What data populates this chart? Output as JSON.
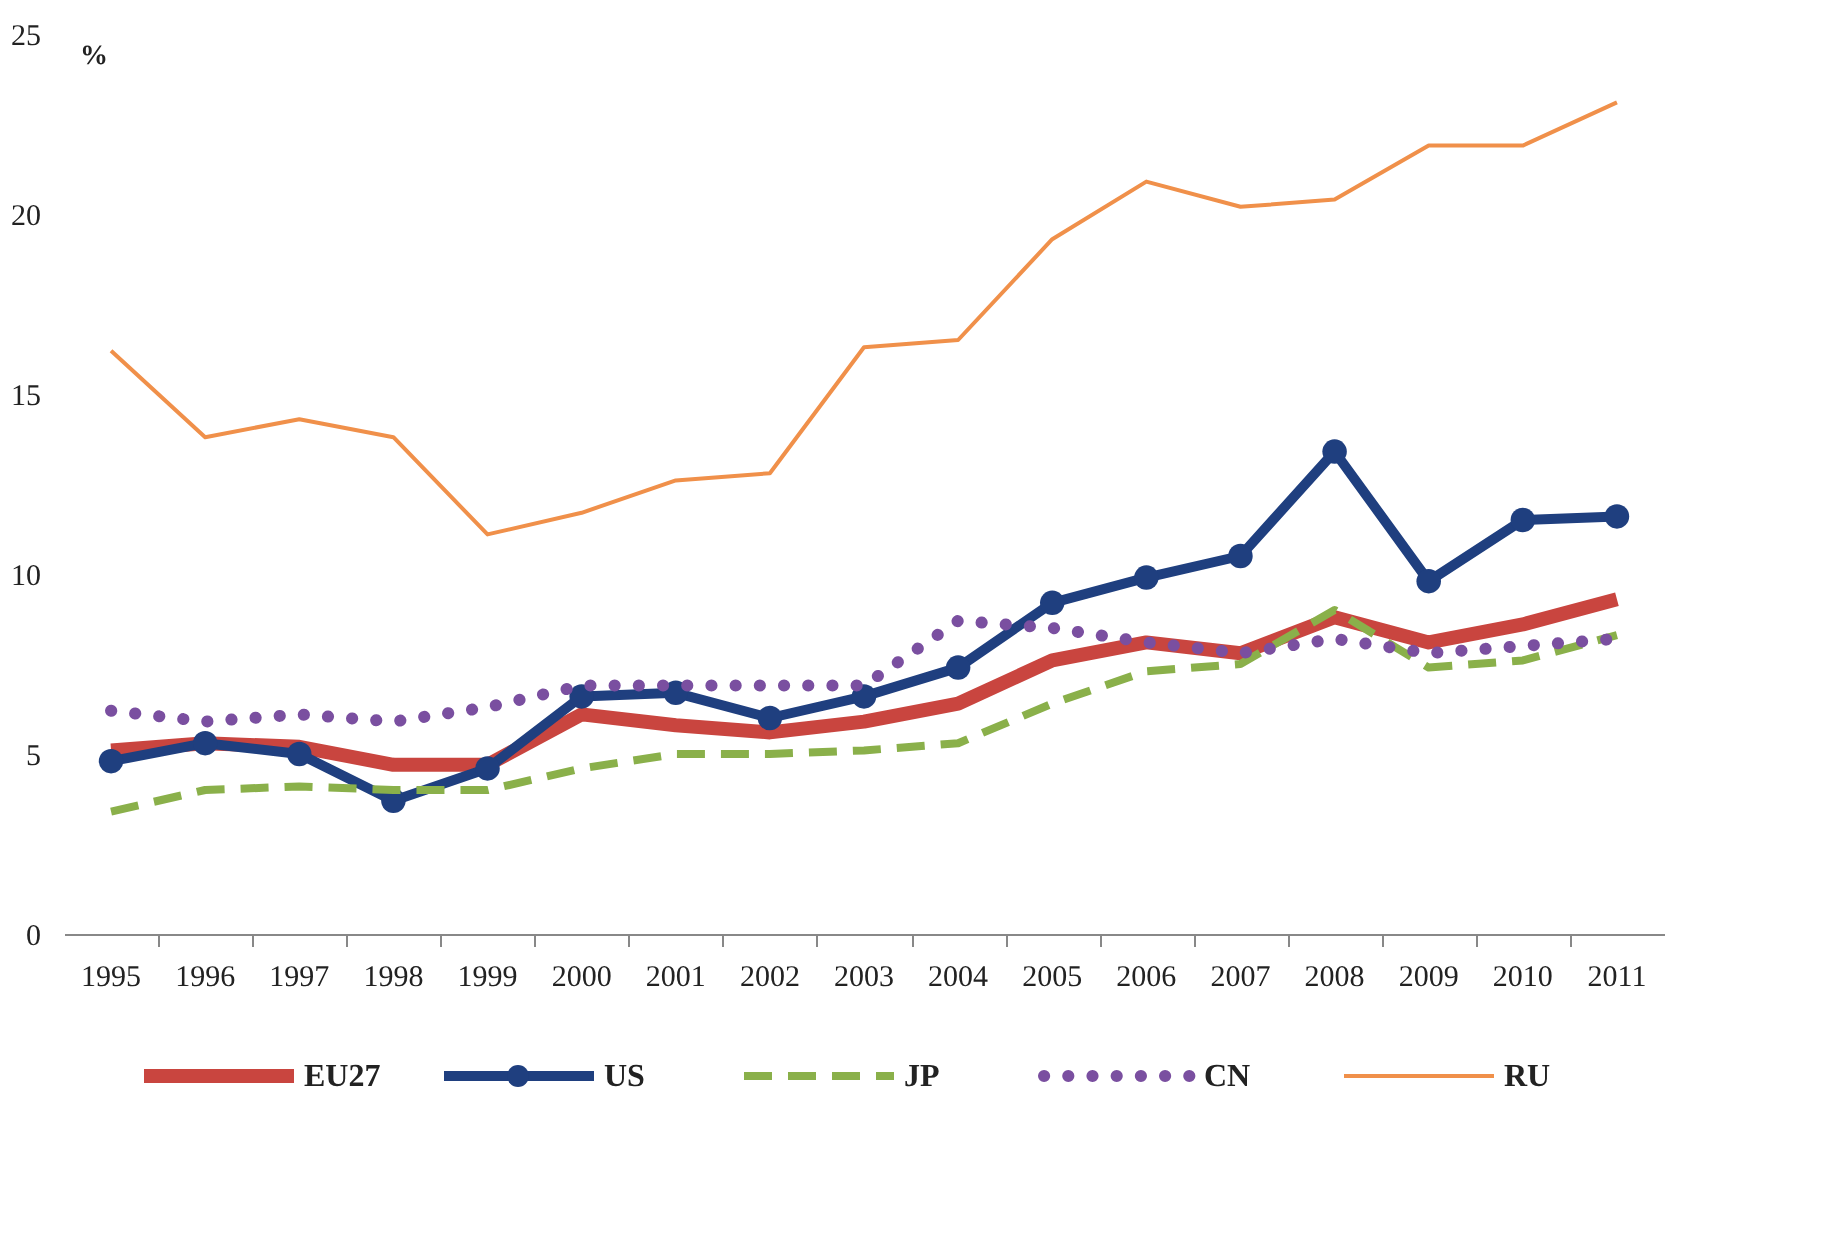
{
  "chart_data": {
    "type": "line",
    "ylabel": "%",
    "categories": [
      "1995",
      "1996",
      "1997",
      "1998",
      "1999",
      "2000",
      "2001",
      "2002",
      "2003",
      "2004",
      "2005",
      "2006",
      "2007",
      "2008",
      "2009",
      "2010",
      "2011"
    ],
    "series": [
      {
        "name": "EU27",
        "color": "#c9453f",
        "line_style": "solid",
        "marker": "none",
        "values": [
          5.1,
          5.3,
          5.2,
          4.7,
          4.7,
          6.1,
          5.8,
          5.6,
          5.9,
          6.4,
          7.6,
          8.1,
          7.8,
          8.8,
          8.1,
          8.6,
          9.3
        ]
      },
      {
        "name": "US",
        "color": "#1f3f7f",
        "line_style": "solid",
        "marker": "circle",
        "values": [
          4.8,
          5.3,
          5.0,
          3.7,
          4.6,
          6.6,
          6.7,
          6.0,
          6.6,
          7.4,
          9.2,
          9.9,
          10.5,
          13.4,
          9.8,
          11.5,
          11.6
        ]
      },
      {
        "name": "JP",
        "color": "#8ab04a",
        "line_style": "dashed",
        "marker": "none",
        "values": [
          3.4,
          4.0,
          4.1,
          4.0,
          4.0,
          4.6,
          5.0,
          5.0,
          5.1,
          5.3,
          6.4,
          7.3,
          7.5,
          9.0,
          7.4,
          7.6,
          8.3
        ]
      },
      {
        "name": "CN",
        "color": "#7a4fa0",
        "line_style": "dotted",
        "marker": "none",
        "values": [
          6.2,
          5.9,
          6.1,
          5.9,
          6.3,
          6.9,
          6.9,
          6.9,
          6.9,
          8.7,
          8.5,
          8.1,
          7.8,
          8.2,
          7.8,
          8.0,
          8.2
        ]
      },
      {
        "name": "RU",
        "color": "#f0904a",
        "line_style": "solid",
        "marker": "none",
        "values": [
          16.2,
          13.8,
          14.3,
          13.8,
          11.1,
          11.7,
          12.6,
          12.8,
          16.3,
          16.5,
          19.3,
          20.9,
          20.2,
          20.4,
          21.9,
          21.9,
          23.1
        ]
      }
    ],
    "ylim": [
      0,
      25
    ],
    "yticks": [
      0,
      5,
      10,
      15,
      20,
      25
    ],
    "grid": false,
    "legend": "bottom"
  }
}
